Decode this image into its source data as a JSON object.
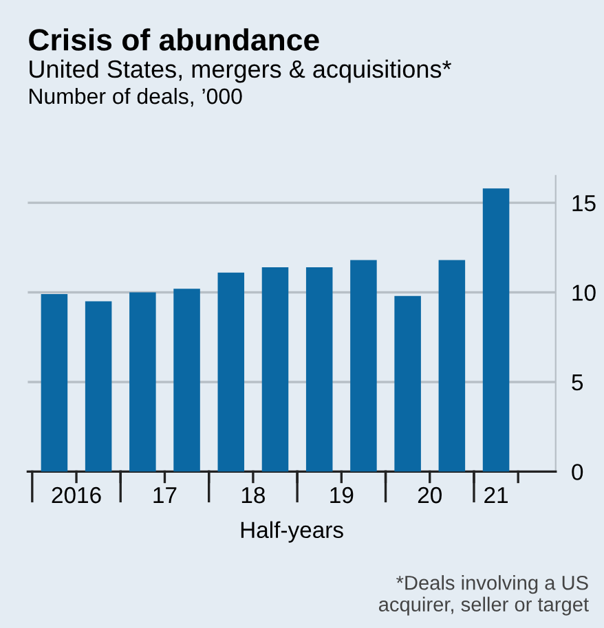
{
  "chart_data": {
    "type": "bar",
    "title": "Crisis of abundance",
    "subtitle": "United States, mergers & acquisitions*",
    "ylabel": "Number of deals, ’000",
    "xlabel": "Half-years",
    "categories": [
      "2016",
      null,
      "17",
      null,
      "18",
      null,
      "19",
      null,
      "20",
      null,
      "21"
    ],
    "values": [
      9.9,
      9.5,
      10.0,
      10.2,
      11.1,
      11.4,
      11.4,
      11.8,
      9.8,
      11.8,
      15.8
    ],
    "color": "#0b68a3",
    "ylim": [
      0,
      16.5
    ],
    "yticks": [
      0,
      5,
      10,
      15
    ],
    "grid": "y",
    "annotations": [
      "*Deals involving a US\nacquirer, seller or target"
    ]
  }
}
